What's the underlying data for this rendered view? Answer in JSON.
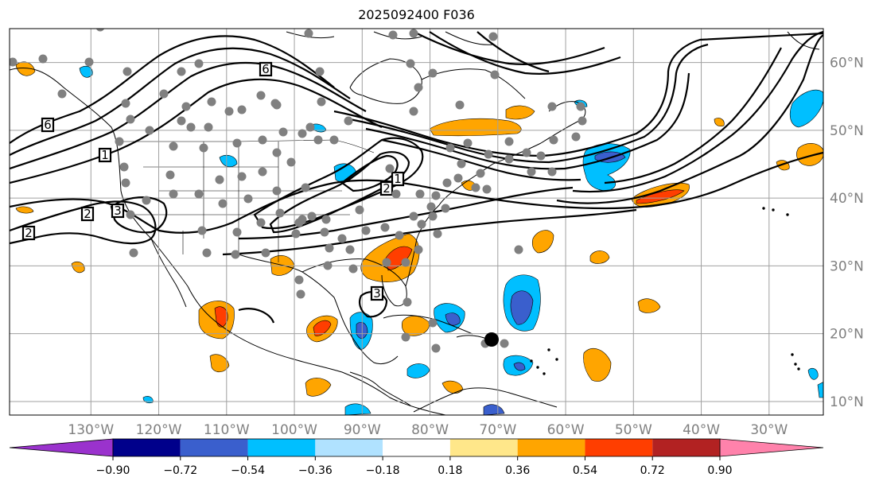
{
  "title": "2025092400 F036",
  "map": {
    "projection": "equirectangular",
    "lon_range": [
      -142,
      -22
    ],
    "lat_range": [
      8,
      65
    ]
  },
  "longitude_labels": [
    "130°W",
    "120°W",
    "110°W",
    "100°W",
    "90°W",
    "80°W",
    "70°W",
    "60°W",
    "50°W",
    "40°W",
    "30°W"
  ],
  "longitude_values": [
    -130,
    -120,
    -110,
    -100,
    -90,
    -80,
    -70,
    -60,
    -50,
    -40,
    -30
  ],
  "latitude_labels": [
    "60°N",
    "50°N",
    "40°N",
    "30°N",
    "20°N",
    "10°N"
  ],
  "latitude_values": [
    60,
    50,
    40,
    30,
    20,
    10
  ],
  "colorbar": {
    "tick_labels": [
      "−0.90",
      "−0.72",
      "−0.54",
      "−0.36",
      "−0.18",
      "0.18",
      "0.36",
      "0.54",
      "0.72",
      "0.90"
    ],
    "under_color": "#9a32cd",
    "over_color": "#ff82ab",
    "colors": [
      "#00008b",
      "#3a5fcd",
      "#00bfff",
      "#b0e2ff",
      "#ffffff",
      "#ffe78a",
      "#ffa500",
      "#ff3e00",
      "#b22222"
    ]
  },
  "contour_labels": [
    "1",
    "2",
    "3",
    "6",
    "1",
    "2",
    "3",
    "6",
    "2"
  ],
  "fill_colors": {
    "light_orange": "#ffa500",
    "red": "#ff3e00",
    "light_blue": "#00bfff",
    "blue": "#3a5fcd"
  },
  "station_color": "#808080",
  "storm_marker_color": "#000000"
}
